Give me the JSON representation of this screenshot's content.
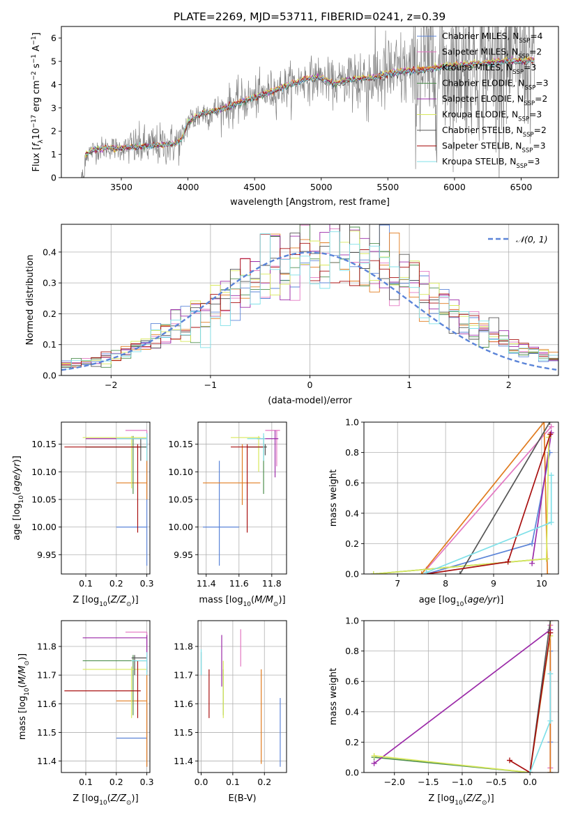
{
  "figure": {
    "title": "PLATE=2269, MJD=53711, FIBERID=0241, z=0.39"
  },
  "colors": {
    "Chabrier MILES": "#5b84d8",
    "Salpeter MILES": "#e377c2",
    "Kroupa MILES": "#e07b1f",
    "Chabrier ELODIE": "#4f8f4f",
    "Salpeter ELODIE": "#9b2aa8",
    "Kroupa ELODIE": "#d8e85a",
    "Chabrier STELIB": "#555555",
    "Salpeter STELIB": "#a80f0f",
    "Kroupa STELIB": "#7fe0e8",
    "data": "#808080",
    "normal": "#5b84d8"
  },
  "chart_data": [
    {
      "id": "spectrum",
      "type": "line",
      "title": "PLATE=2269, MJD=53711, FIBERID=0241, z=0.39",
      "xlabel": "wavelength [Angstrom, rest frame]",
      "ylabel": "Flux [f_λ 10^-17 erg cm^-2 s^-1 A^-1]",
      "xlim": [
        3050,
        6780
      ],
      "ylim": [
        0,
        6.5
      ],
      "xticks": [
        3500,
        4000,
        4500,
        5000,
        5500,
        6000,
        6500
      ],
      "yticks": [
        0,
        1,
        2,
        3,
        4,
        5,
        6
      ],
      "legend_position": "top-right",
      "continuum_model": {
        "x": [
          3200,
          3230,
          3300,
          3400,
          3500,
          3600,
          3700,
          3800,
          3900,
          3950,
          4000,
          4100,
          4200,
          4300,
          4400,
          4500,
          4600,
          4700,
          4800,
          4900,
          5000,
          5100,
          5200,
          5300,
          5400,
          5500,
          5600,
          5700,
          5800,
          5900,
          6000,
          6100,
          6200,
          6300,
          6400,
          6500,
          6600
        ],
        "y": [
          0,
          1.0,
          1.2,
          1.3,
          1.25,
          1.3,
          1.35,
          1.4,
          1.45,
          1.6,
          2.4,
          2.75,
          2.85,
          3.05,
          3.25,
          3.45,
          3.65,
          3.85,
          4.05,
          4.25,
          4.3,
          4.0,
          4.2,
          4.25,
          4.3,
          4.45,
          4.55,
          4.6,
          4.65,
          4.75,
          4.8,
          4.85,
          4.9,
          4.95,
          5.0,
          5.0,
          5.05
        ]
      },
      "series": [
        {
          "name": "Chabrier MILES",
          "n_ssp": "4"
        },
        {
          "name": "Salpeter MILES",
          "n_ssp": "2"
        },
        {
          "name": "Kroupa MILES",
          "n_ssp": "3"
        },
        {
          "name": "Chabrier ELODIE",
          "n_ssp": "3"
        },
        {
          "name": "Salpeter ELODIE",
          "n_ssp": "2"
        },
        {
          "name": "Kroupa ELODIE",
          "n_ssp": "3"
        },
        {
          "name": "Chabrier STELIB",
          "n_ssp": "2"
        },
        {
          "name": "Salpeter STELIB",
          "n_ssp": "3"
        },
        {
          "name": "Kroupa STELIB",
          "n_ssp": "3"
        }
      ]
    },
    {
      "id": "residuals",
      "type": "histogram",
      "xlabel": "(data-model)/error",
      "ylabel": "Normed distribution",
      "xlim": [
        -2.5,
        2.5
      ],
      "ylim": [
        0,
        0.49
      ],
      "xticks": [
        -2,
        -1,
        0,
        1,
        2
      ],
      "yticks": [
        0.0,
        0.1,
        0.2,
        0.3,
        0.4
      ],
      "grid": true,
      "legend_position": "top-right",
      "reference_curve": {
        "name": "N(0,1)",
        "mean": 0,
        "sigma": 1
      }
    },
    {
      "id": "age_vs_Z",
      "type": "errorbar",
      "xlabel": "Z [log10(Z/Z_sun)]",
      "ylabel": "age [log10(age/yr)]",
      "xlim": [
        0.02,
        0.31
      ],
      "ylim": [
        9.915,
        10.19
      ],
      "xticks": [
        0.1,
        0.2,
        0.3
      ],
      "yticks": [
        9.95,
        10.0,
        10.05,
        10.1,
        10.15
      ],
      "grid": true,
      "points": [
        {
          "series": "Chabrier MILES",
          "x": 0.3,
          "y": 10.0,
          "xlo": 0.2,
          "xhi": 0.3,
          "ylo": 9.93,
          "yhi": 10.17
        },
        {
          "series": "Salpeter MILES",
          "x": 0.3,
          "y": 10.175,
          "xlo": 0.23,
          "xhi": 0.3,
          "ylo": 10.16,
          "yhi": 10.175
        },
        {
          "series": "Kroupa MILES",
          "x": 0.3,
          "y": 10.08,
          "xlo": 0.2,
          "xhi": 0.3,
          "ylo": 10.05,
          "yhi": 10.15
        },
        {
          "series": "Chabrier ELODIE",
          "x": 0.255,
          "y": 10.145,
          "xlo": 0.1,
          "xhi": 0.3,
          "ylo": 10.06,
          "yhi": 10.165
        },
        {
          "series": "Salpeter ELODIE",
          "x": 0.3,
          "y": 10.16,
          "xlo": 0.1,
          "xhi": 0.3,
          "ylo": 10.14,
          "yhi": 10.17
        },
        {
          "series": "Kroupa ELODIE",
          "x": 0.25,
          "y": 10.162,
          "xlo": 0.09,
          "xhi": 0.3,
          "ylo": 10.07,
          "yhi": 10.165
        },
        {
          "series": "Chabrier STELIB",
          "x": 0.28,
          "y": 10.145,
          "xlo": 0.1,
          "xhi": 0.3,
          "ylo": 10.12,
          "yhi": 10.16
        },
        {
          "series": "Salpeter STELIB",
          "x": 0.27,
          "y": 10.145,
          "xlo": 0.03,
          "xhi": 0.28,
          "ylo": 9.99,
          "yhi": 10.15
        },
        {
          "series": "Kroupa STELIB",
          "x": 0.3,
          "y": 10.16,
          "xlo": 0.2,
          "xhi": 0.3,
          "ylo": 10.12,
          "yhi": 10.17
        }
      ]
    },
    {
      "id": "age_vs_mass",
      "type": "errorbar",
      "xlabel": "mass [log10(M/M_sun)]",
      "ylabel": "",
      "xlim": [
        11.35,
        11.89
      ],
      "ylim": [
        9.915,
        10.19
      ],
      "xticks": [
        11.4,
        11.6,
        11.8
      ],
      "yticks": [
        9.95,
        10.0,
        10.05,
        10.1,
        10.15
      ],
      "grid": true,
      "points": [
        {
          "series": "Chabrier MILES",
          "x": 11.48,
          "y": 10.0,
          "xlo": 11.38,
          "xhi": 11.6,
          "ylo": 9.93,
          "yhi": 10.12
        },
        {
          "series": "Salpeter MILES",
          "x": 11.83,
          "y": 10.175,
          "xlo": 11.76,
          "xhi": 11.85,
          "ylo": 10.11,
          "yhi": 10.175
        },
        {
          "series": "Kroupa MILES",
          "x": 11.62,
          "y": 10.08,
          "xlo": 11.38,
          "xhi": 11.73,
          "ylo": 10.04,
          "yhi": 10.15
        },
        {
          "series": "Chabrier ELODIE",
          "x": 11.75,
          "y": 10.145,
          "xlo": 11.65,
          "xhi": 11.77,
          "ylo": 10.06,
          "yhi": 10.165
        },
        {
          "series": "Salpeter ELODIE",
          "x": 11.82,
          "y": 10.16,
          "xlo": 11.71,
          "xhi": 11.84,
          "ylo": 10.09,
          "yhi": 10.175
        },
        {
          "series": "Kroupa ELODIE",
          "x": 11.72,
          "y": 10.162,
          "xlo": 11.55,
          "xhi": 11.73,
          "ylo": 10.1,
          "yhi": 10.165
        },
        {
          "series": "Chabrier STELIB",
          "x": 11.76,
          "y": 10.145,
          "xlo": 11.65,
          "xhi": 11.77,
          "ylo": 10.13,
          "yhi": 10.15
        },
        {
          "series": "Salpeter STELIB",
          "x": 11.65,
          "y": 10.145,
          "xlo": 11.55,
          "xhi": 11.75,
          "ylo": 9.99,
          "yhi": 10.15
        },
        {
          "series": "Kroupa STELIB",
          "x": 11.75,
          "y": 10.16,
          "xlo": 11.65,
          "xhi": 11.76,
          "ylo": 10.12,
          "yhi": 10.17
        }
      ]
    },
    {
      "id": "weight_vs_age",
      "type": "line",
      "xlabel": "age [log10(age/yr)]",
      "ylabel": "mass weight",
      "xlim": [
        6.3,
        10.35
      ],
      "ylim": [
        0,
        1
      ],
      "xticks": [
        7,
        8,
        9,
        10
      ],
      "yticks": [
        0.0,
        0.2,
        0.4,
        0.6,
        0.8,
        1.0
      ],
      "grid": true,
      "series": [
        {
          "name": "Chabrier MILES",
          "x": [
            7.6,
            9.8,
            10.17
          ],
          "y": [
            0.0,
            0.2,
            0.8
          ]
        },
        {
          "name": "Salpeter MILES",
          "x": [
            7.6,
            10.2
          ],
          "y": [
            0.03,
            0.97
          ]
        },
        {
          "name": "Kroupa MILES",
          "x": [
            7.5,
            10.05,
            10.12
          ],
          "y": [
            0.0,
            1.0,
            0.0
          ]
        },
        {
          "name": "Chabrier ELODIE",
          "x": [
            6.5,
            10.1
          ],
          "y": [
            0.0,
            0.1
          ]
        },
        {
          "name": "Salpeter ELODIE",
          "x": [
            9.8,
            10.2
          ],
          "y": [
            0.07,
            0.93
          ]
        },
        {
          "name": "Kroupa ELODIE",
          "x": [
            6.5,
            10.1,
            10.15
          ],
          "y": [
            0.0,
            0.1,
            0.9
          ]
        },
        {
          "name": "Chabrier STELIB",
          "x": [
            8.3,
            10.17
          ],
          "y": [
            0.0,
            1.0
          ]
        },
        {
          "name": "Salpeter STELIB",
          "x": [
            7.6,
            9.3,
            10.18
          ],
          "y": [
            0.0,
            0.08,
            0.92
          ]
        },
        {
          "name": "Kroupa STELIB",
          "x": [
            7.6,
            10.2,
            10.2
          ],
          "y": [
            0.01,
            0.34,
            0.65
          ]
        }
      ]
    },
    {
      "id": "mass_vs_Z",
      "type": "errorbar",
      "xlabel": "Z [log10(Z/Z_sun)]",
      "ylabel": "mass [log10(M/M_sun)]",
      "xlim": [
        0.02,
        0.31
      ],
      "ylim": [
        11.36,
        11.89
      ],
      "xticks": [
        0.1,
        0.2,
        0.3
      ],
      "yticks": [
        11.4,
        11.5,
        11.6,
        11.7,
        11.8
      ],
      "grid": true,
      "points": [
        {
          "series": "Chabrier MILES",
          "x": 0.3,
          "y": 11.48,
          "xlo": 0.2,
          "xhi": 0.3,
          "ylo": 11.38,
          "yhi": 11.6
        },
        {
          "series": "Salpeter MILES",
          "x": 0.3,
          "y": 11.85,
          "xlo": 0.23,
          "xhi": 0.3,
          "ylo": 11.76,
          "yhi": 11.85
        },
        {
          "series": "Kroupa MILES",
          "x": 0.3,
          "y": 11.61,
          "xlo": 0.2,
          "xhi": 0.3,
          "ylo": 11.38,
          "yhi": 11.73
        },
        {
          "series": "Chabrier ELODIE",
          "x": 0.255,
          "y": 11.75,
          "xlo": 0.09,
          "xhi": 0.3,
          "ylo": 11.56,
          "yhi": 11.77
        },
        {
          "series": "Salpeter ELODIE",
          "x": 0.3,
          "y": 11.83,
          "xlo": 0.09,
          "xhi": 0.3,
          "ylo": 11.71,
          "yhi": 11.84
        },
        {
          "series": "Kroupa ELODIE",
          "x": 0.25,
          "y": 11.72,
          "xlo": 0.09,
          "xhi": 0.3,
          "ylo": 11.55,
          "yhi": 11.73
        },
        {
          "series": "Chabrier STELIB",
          "x": 0.26,
          "y": 11.76,
          "xlo": 0.25,
          "xhi": 0.3,
          "ylo": 11.7,
          "yhi": 11.77
        },
        {
          "series": "Salpeter STELIB",
          "x": 0.27,
          "y": 11.645,
          "xlo": 0.03,
          "xhi": 0.28,
          "ylo": 11.55,
          "yhi": 11.75
        },
        {
          "series": "Kroupa STELIB",
          "x": 0.3,
          "y": 11.75,
          "xlo": 0.25,
          "xhi": 0.3,
          "ylo": 11.7,
          "yhi": 11.78
        }
      ]
    },
    {
      "id": "mass_vs_ebv",
      "type": "errorbar",
      "xlabel": "E(B-V)",
      "ylabel": "",
      "xlim": [
        -0.01,
        0.27
      ],
      "ylim": [
        11.36,
        11.89
      ],
      "xticks": [
        0.0,
        0.1,
        0.2
      ],
      "yticks": [
        11.4,
        11.5,
        11.6,
        11.7,
        11.8
      ],
      "grid": true,
      "points": [
        {
          "series": "Chabrier MILES",
          "x": 0.25,
          "ylo": 11.38,
          "yhi": 11.62
        },
        {
          "series": "Salpeter MILES",
          "x": 0.125,
          "ylo": 11.73,
          "yhi": 11.86
        },
        {
          "series": "Kroupa MILES",
          "x": 0.19,
          "ylo": 11.39,
          "yhi": 11.72
        },
        {
          "series": "Chabrier ELODIE",
          "x": 0.07,
          "ylo": 11.56,
          "yhi": 11.72
        },
        {
          "series": "Salpeter ELODIE",
          "x": 0.065,
          "ylo": 11.66,
          "yhi": 11.84
        },
        {
          "series": "Kroupa ELODIE",
          "x": 0.07,
          "ylo": 11.55,
          "yhi": 11.75
        },
        {
          "series": "Chabrier STELIB",
          "x": 0.0,
          "ylo": 11.7,
          "yhi": 11.78
        },
        {
          "series": "Salpeter STELIB",
          "x": 0.025,
          "ylo": 11.55,
          "yhi": 11.72
        },
        {
          "series": "Kroupa STELIB",
          "x": 0.0,
          "ylo": 11.7,
          "yhi": 11.79
        }
      ]
    },
    {
      "id": "weight_vs_Z",
      "type": "line",
      "xlabel": "Z [log10(Z/Z_sun)]",
      "ylabel": "mass weight",
      "xlim": [
        -2.45,
        0.42
      ],
      "ylim": [
        0,
        1
      ],
      "xticks": [
        -2.0,
        -1.5,
        -1.0,
        -0.5,
        0.0
      ],
      "yticks": [
        0.0,
        0.2,
        0.4,
        0.6,
        0.8,
        1.0
      ],
      "grid": true,
      "series": [
        {
          "name": "Chabrier MILES",
          "x": [
            0.3,
            0.3,
            0.3
          ],
          "y": [
            0.0,
            0.2,
            0.8
          ]
        },
        {
          "name": "Salpeter MILES",
          "x": [
            0.3,
            0.3
          ],
          "y": [
            0.03,
            0.97
          ]
        },
        {
          "name": "Kroupa MILES",
          "x": [
            0.3,
            0.3,
            0.3
          ],
          "y": [
            0.0,
            1.0,
            0.0
          ]
        },
        {
          "name": "Chabrier ELODIE",
          "x": [
            -2.3,
            0.0
          ],
          "y": [
            0.1,
            0.0
          ]
        },
        {
          "name": "Salpeter ELODIE",
          "x": [
            -2.3,
            0.3
          ],
          "y": [
            0.06,
            0.94
          ]
        },
        {
          "name": "Kroupa ELODIE",
          "x": [
            -2.3,
            0.0,
            0.3
          ],
          "y": [
            0.11,
            0.0,
            0.9
          ]
        },
        {
          "name": "Chabrier STELIB",
          "x": [
            0.0,
            0.3
          ],
          "y": [
            0.0,
            1.0
          ]
        },
        {
          "name": "Salpeter STELIB",
          "x": [
            -0.3,
            0.0,
            0.3
          ],
          "y": [
            0.08,
            0.0,
            0.92
          ]
        },
        {
          "name": "Kroupa STELIB",
          "x": [
            0.0,
            0.3,
            0.3
          ],
          "y": [
            0.0,
            0.34,
            0.65
          ]
        }
      ]
    }
  ]
}
